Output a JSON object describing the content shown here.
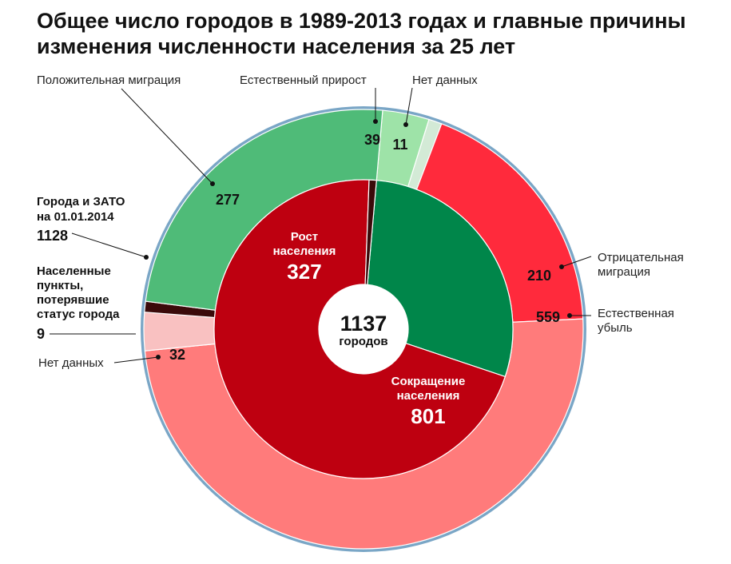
{
  "title": "Общее число городов в 1989-2013 годах и главные причины изменения численности населения за 25 лет",
  "chart_data": {
    "type": "pie",
    "variant": "nested-donut",
    "total": 1137,
    "center_label": "городов",
    "inner_ring": [
      {
        "name": "Рост населения",
        "value": 327,
        "color": "#00864a",
        "label_line1": "Рост",
        "label_line2": "населения"
      },
      {
        "name": "Сокращение населения",
        "value": 801,
        "color": "#be0010",
        "label_line1": "Сокращение",
        "label_line2": "населения"
      },
      {
        "name": "Населенные пункты, потерявшие статус города",
        "value": 9,
        "color": "#3b0a0a"
      }
    ],
    "outer_ring": [
      {
        "name": "Естественный прирост",
        "value": 39,
        "color": "#9ee3a8",
        "group": "Рост населения"
      },
      {
        "name": "Нет данных",
        "value": 11,
        "color": "#d3ead6",
        "group": "Рост населения"
      },
      {
        "name": "Отрицательная миграция",
        "value": 210,
        "color": "#ff2a3c",
        "group": "Сокращение населения"
      },
      {
        "name": "Естественная убыль",
        "value": 559,
        "color": "#ff7b7b",
        "group": "Сокращение населения"
      },
      {
        "name": "Нет данных",
        "value": 32,
        "color": "#f9c1c1",
        "group": "Сокращение населения"
      },
      {
        "name": "Населенные пункты, потерявшие статус города",
        "value": 9,
        "color": "#3b0a0a",
        "group": "Населенные пункты, потерявшие статус города"
      },
      {
        "name": "Положительная миграция",
        "value": 277,
        "color": "#4fbb78",
        "group": "Рост населения"
      }
    ],
    "rim": {
      "name": "Города и ЗАТО на 01.01.2014",
      "value": 1128,
      "color": "#7aa6c6"
    },
    "labels": {
      "positive_migration": "Положительная миграция",
      "natural_growth": "Естественный прирост",
      "no_data_top": "Нет данных",
      "negative_migration_1": "Отрицательная",
      "negative_migration_2": "миграция",
      "natural_decline_1": "Естественная",
      "natural_decline_2": "убыль",
      "no_data_left": "Нет данных",
      "cities_zato_1": "Города и ЗАТО",
      "cities_zato_2": "на 01.01.2014",
      "cities_zato_value": "1128",
      "lost_status_1": "Населенные",
      "lost_status_2": "пункты,",
      "lost_status_3": "потерявшие",
      "lost_status_4": "статус города",
      "lost_status_value": "9"
    }
  }
}
